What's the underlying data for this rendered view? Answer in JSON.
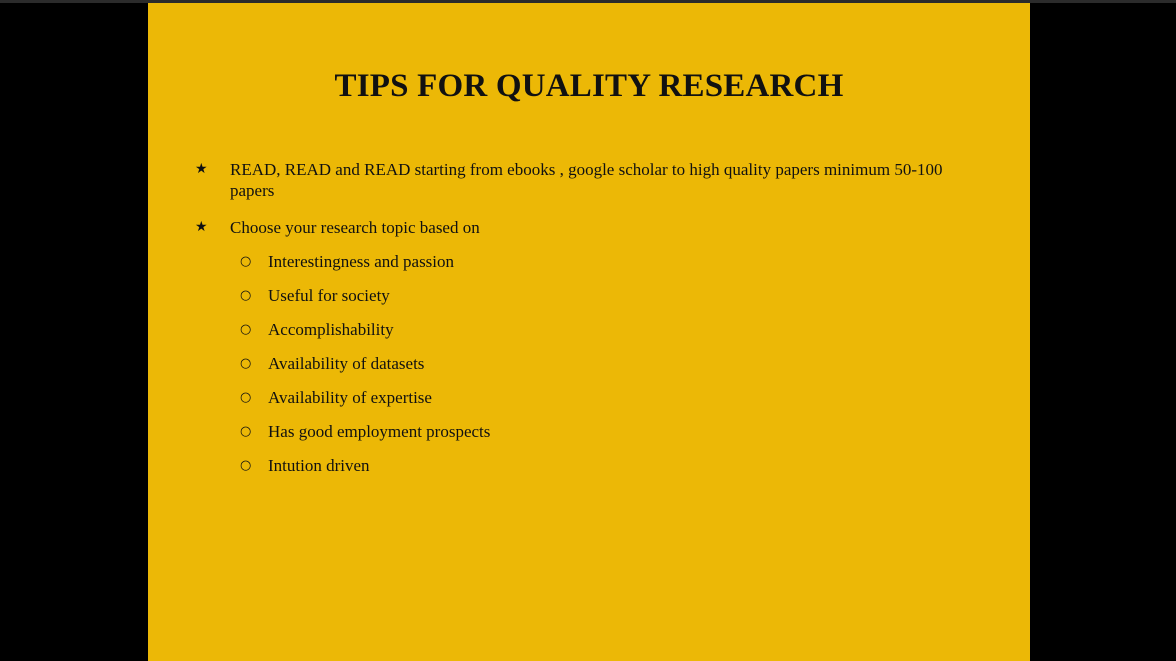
{
  "slide": {
    "title": "TIPS FOR QUALITY RESEARCH",
    "bullet_marker": "★",
    "sub_marker": "○",
    "bullets": [
      {
        "text": "READ, READ and READ starting from ebooks , google scholar to high quality papers minimum 50-100 papers"
      },
      {
        "text": "Choose your research topic based on",
        "sub_items": [
          "Interestingness and passion",
          "Useful for society",
          "Accomplishability",
          "Availability of datasets",
          "Availability of expertise",
          "Has good employment prospects",
          "Intution driven"
        ]
      }
    ]
  },
  "colors": {
    "slide_background": "#ecb806",
    "letterbox": "#000000",
    "text": "#111111"
  }
}
